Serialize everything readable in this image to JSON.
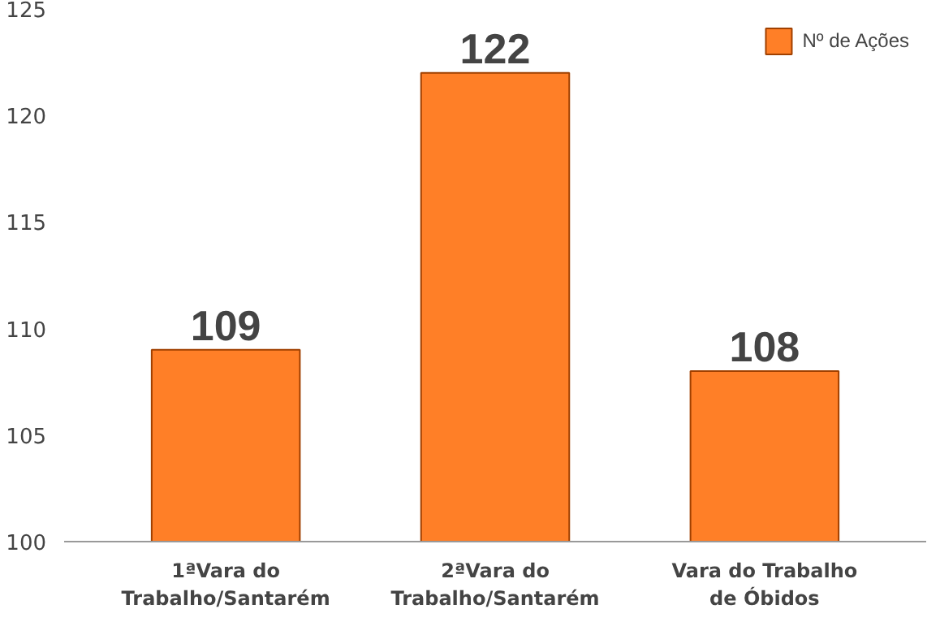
{
  "chart_data": {
    "type": "bar",
    "categories": [
      "1ªVara do\nTrabalho/Santarém",
      "2ªVara do\nTrabalho/Santarém",
      "Vara do Trabalho\nde Óbidos"
    ],
    "series": [
      {
        "name": "Nº de Ações",
        "color": "#ff7f27",
        "values": [
          109,
          122,
          108
        ]
      }
    ],
    "ylim": [
      100,
      125
    ],
    "yticks": [
      100,
      105,
      110,
      115,
      120,
      125
    ],
    "grid": false,
    "legend": "top right",
    "data_labels": true
  }
}
